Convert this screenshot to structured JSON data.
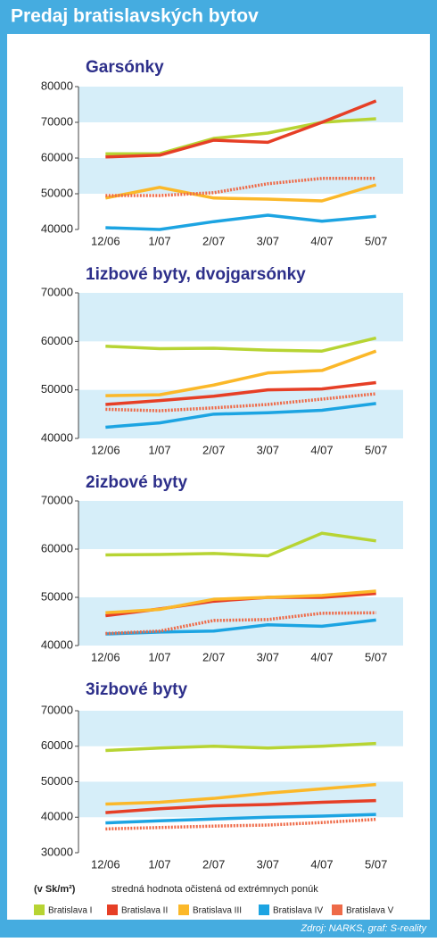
{
  "header": {
    "title": "Predaj bratislavských bytov"
  },
  "legend": [
    {
      "name": "Bratislava I",
      "color": "#b7d433"
    },
    {
      "name": "Bratislava II",
      "color": "#e63f26"
    },
    {
      "name": "Bratislava III",
      "color": "#fbb829"
    },
    {
      "name": "Bratislava IV",
      "color": "#1ca4e2"
    },
    {
      "name": "Bratislava V",
      "color": "#ee6a48"
    }
  ],
  "chart_data": [
    {
      "type": "line",
      "title": "Garsónky",
      "categories": [
        "12/06",
        "1/07",
        "2/07",
        "3/07",
        "4/07",
        "5/07"
      ],
      "ylim": [
        40000,
        80000
      ],
      "yticks": [
        40000,
        50000,
        60000,
        70000,
        80000
      ],
      "series": [
        {
          "values": [
            61200,
            61200,
            65500,
            67000,
            70000,
            71000
          ]
        },
        {
          "values": [
            60300,
            60800,
            65000,
            64400,
            70000,
            76000
          ]
        },
        {
          "values": [
            48800,
            51800,
            48800,
            48500,
            48000,
            52500
          ]
        },
        {
          "values": [
            40500,
            40000,
            42200,
            44000,
            42300,
            43700
          ]
        },
        {
          "values": [
            49500,
            49500,
            50300,
            52800,
            54300,
            54300
          ]
        }
      ]
    },
    {
      "type": "line",
      "title": "1izbové byty, dvojgarsónky",
      "categories": [
        "12/06",
        "1/07",
        "2/07",
        "3/07",
        "4/07",
        "5/07"
      ],
      "ylim": [
        40000,
        70000
      ],
      "yticks": [
        40000,
        50000,
        60000,
        70000
      ],
      "series": [
        {
          "values": [
            59000,
            58500,
            58600,
            58200,
            58000,
            60700
          ]
        },
        {
          "values": [
            47000,
            47800,
            48700,
            50000,
            50200,
            51500
          ]
        },
        {
          "values": [
            48800,
            49000,
            51000,
            53500,
            54000,
            58000
          ]
        },
        {
          "values": [
            42300,
            43200,
            45000,
            45300,
            45800,
            47200
          ]
        },
        {
          "values": [
            46000,
            45700,
            46300,
            47000,
            48100,
            49200
          ]
        }
      ]
    },
    {
      "type": "line",
      "title": "2izbové byty",
      "categories": [
        "12/06",
        "1/07",
        "2/07",
        "3/07",
        "4/07",
        "5/07"
      ],
      "ylim": [
        40000,
        70000
      ],
      "yticks": [
        40000,
        50000,
        60000,
        70000
      ],
      "series": [
        {
          "values": [
            58800,
            58900,
            59100,
            58600,
            63300,
            61700
          ]
        },
        {
          "values": [
            46200,
            47600,
            49200,
            50000,
            50000,
            50800
          ]
        },
        {
          "values": [
            46800,
            47500,
            49600,
            50000,
            50400,
            51300
          ]
        },
        {
          "values": [
            42400,
            42800,
            43000,
            44300,
            44000,
            45300
          ]
        },
        {
          "values": [
            42500,
            43000,
            45200,
            45400,
            46700,
            46800
          ]
        }
      ]
    },
    {
      "type": "line",
      "title": "3izbové byty",
      "categories": [
        "12/06",
        "1/07",
        "2/07",
        "3/07",
        "4/07",
        "5/07"
      ],
      "ylim": [
        30000,
        70000
      ],
      "yticks": [
        30000,
        40000,
        50000,
        60000,
        70000
      ],
      "series": [
        {
          "values": [
            58800,
            59500,
            60000,
            59500,
            60000,
            60800
          ]
        },
        {
          "values": [
            41300,
            42400,
            43200,
            43600,
            44200,
            44700
          ]
        },
        {
          "values": [
            43700,
            44200,
            45300,
            46800,
            48000,
            49200
          ]
        },
        {
          "values": [
            38400,
            39000,
            39500,
            40000,
            40300,
            40800
          ]
        },
        {
          "values": [
            36700,
            37100,
            37500,
            37800,
            38500,
            39400
          ]
        }
      ]
    }
  ],
  "footer": {
    "unit": "(v Sk/m²)",
    "note": "stredná hodnota očistená od extrémnych ponúk",
    "source": "Zdroj: NARKS, graf: S-reality"
  }
}
